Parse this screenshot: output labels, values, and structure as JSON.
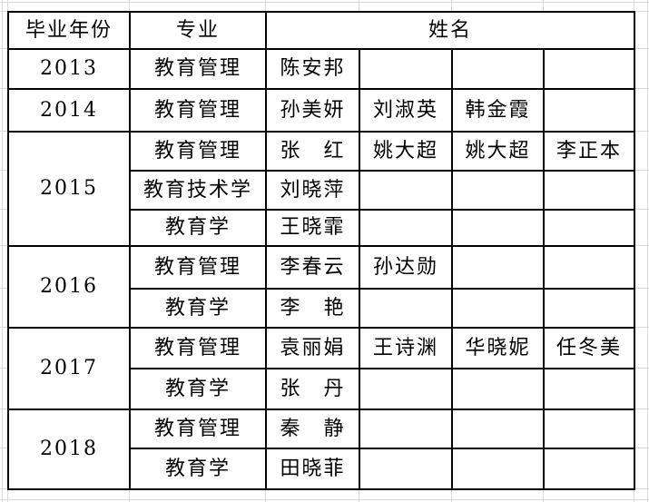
{
  "header": {
    "year": "毕业年份",
    "major": "专业",
    "names": "姓名"
  },
  "groups": [
    {
      "year": "2013",
      "rows": [
        {
          "major": "教育管理",
          "names": [
            "陈安邦",
            "",
            "",
            ""
          ]
        }
      ]
    },
    {
      "year": "2014",
      "rows": [
        {
          "major": "教育管理",
          "names": [
            "孙美妍",
            "刘淑英",
            "韩金霞",
            ""
          ]
        }
      ]
    },
    {
      "year": "2015",
      "rows": [
        {
          "major": "教育管理",
          "names": [
            "张　红",
            "姚大超",
            "姚大超",
            "李正本"
          ]
        },
        {
          "major": "教育技术学",
          "names": [
            "刘晓萍",
            "",
            "",
            ""
          ]
        },
        {
          "major": "教育学",
          "names": [
            "王晓霏",
            "",
            "",
            ""
          ]
        }
      ]
    },
    {
      "year": "2016",
      "rows": [
        {
          "major": "教育管理",
          "names": [
            "李春云",
            "孙达勋",
            "",
            ""
          ]
        },
        {
          "major": "教育学",
          "names": [
            "李　艳",
            "",
            "",
            ""
          ]
        }
      ]
    },
    {
      "year": "2017",
      "rows": [
        {
          "major": "教育管理",
          "names": [
            "袁丽娟",
            "王诗渊",
            "华晓妮",
            "任冬美"
          ]
        },
        {
          "major": "教育学",
          "names": [
            "张　丹",
            "",
            "",
            ""
          ]
        }
      ]
    },
    {
      "year": "2018",
      "rows": [
        {
          "major": "教育管理",
          "names": [
            "秦　静",
            "",
            "",
            ""
          ]
        },
        {
          "major": "教育学",
          "names": [
            "田晓菲",
            "",
            "",
            ""
          ]
        }
      ]
    }
  ],
  "colors": {
    "border": "#000000",
    "gridline": "#d9d9d9",
    "background": "#ffffff",
    "text": "#000000"
  }
}
